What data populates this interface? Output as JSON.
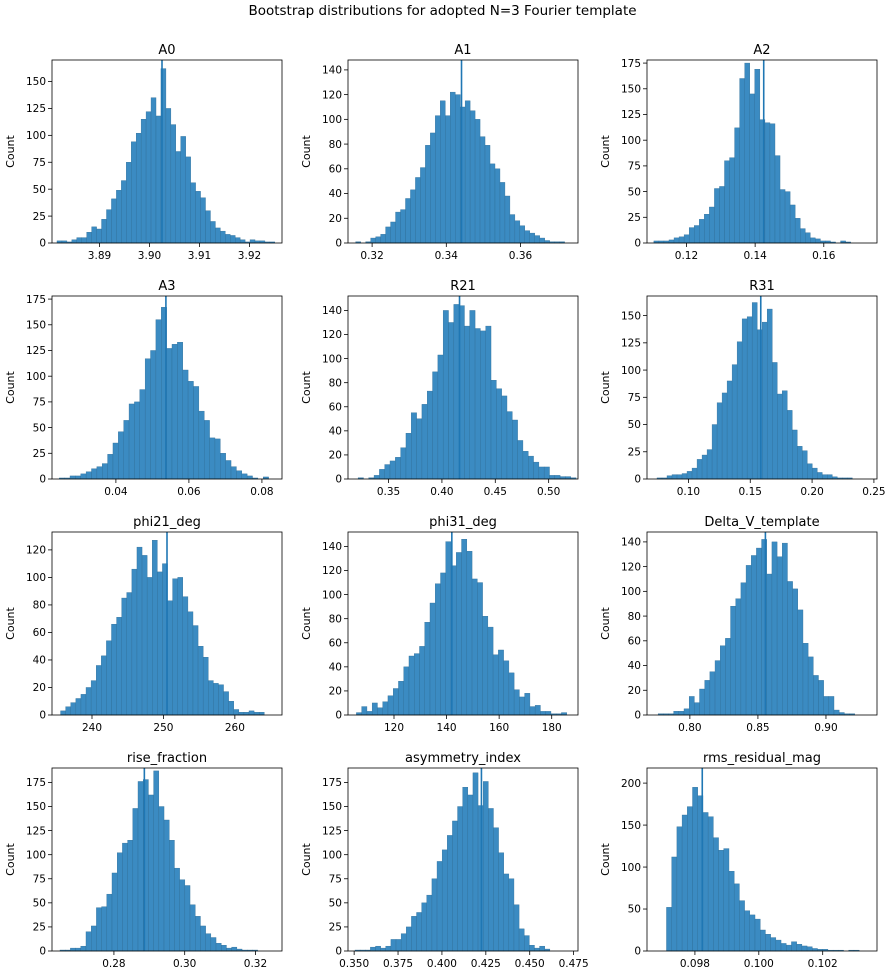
{
  "figure": {
    "suptitle": "Bootstrap distributions for adopted N=3 Fourier template",
    "colors": {
      "bar": "#3b8bc2",
      "bar_edge": "#2f6f9a",
      "marker": "#1f77b4"
    }
  },
  "chart_data": [
    {
      "type": "bar",
      "title": "A0",
      "ylabel": "Count",
      "xlim": [
        3.8805,
        3.9265
      ],
      "ylim": [
        0,
        170
      ],
      "xticks": [
        3.89,
        3.9,
        3.91,
        3.92
      ],
      "xtick_labels": [
        "3.89",
        "3.90",
        "3.91",
        "3.92"
      ],
      "yticks": [
        0,
        25,
        50,
        75,
        100,
        125,
        150
      ],
      "marker_x": 3.9025,
      "bin_start": 3.8815,
      "bin_width": 0.00099,
      "counts": [
        2,
        2,
        1,
        3,
        5,
        5,
        10,
        15,
        13,
        22,
        31,
        41,
        49,
        58,
        75,
        94,
        102,
        115,
        122,
        135,
        118,
        162,
        125,
        110,
        85,
        99,
        80,
        56,
        48,
        42,
        30,
        20,
        14,
        11,
        8,
        7,
        5,
        3,
        1,
        3,
        2,
        2,
        1,
        1
      ]
    },
    {
      "type": "bar",
      "title": "A1",
      "ylabel": "Count",
      "xlim": [
        0.3135,
        0.3755
      ],
      "ylim": [
        0,
        148
      ],
      "xticks": [
        0.32,
        0.34,
        0.36
      ],
      "xtick_labels": [
        "0.32",
        "0.34",
        "0.36"
      ],
      "yticks": [
        0,
        20,
        40,
        60,
        80,
        100,
        120,
        140
      ],
      "marker_x": 0.3441,
      "bin_start": 0.3156,
      "bin_width": 0.00134,
      "counts": [
        1,
        0,
        1,
        4,
        5,
        7,
        13,
        17,
        25,
        27,
        36,
        43,
        53,
        61,
        79,
        89,
        103,
        115,
        103,
        122,
        120,
        110,
        115,
        107,
        100,
        86,
        79,
        64,
        60,
        49,
        38,
        23,
        18,
        14,
        10,
        8,
        6,
        4,
        2,
        1,
        1,
        1
      ]
    },
    {
      "type": "bar",
      "title": "A2",
      "ylabel": "Count",
      "xlim": [
        0.1085,
        0.1755
      ],
      "ylim": [
        0,
        178
      ],
      "xticks": [
        0.12,
        0.14,
        0.16
      ],
      "xtick_labels": [
        "0.12",
        "0.14",
        "0.16"
      ],
      "yticks": [
        0,
        25,
        50,
        75,
        100,
        125,
        150,
        175
      ],
      "marker_x": 0.1425,
      "bin_start": 0.1105,
      "bin_width": 0.00147,
      "counts": [
        2,
        2,
        2,
        3,
        5,
        6,
        8,
        15,
        17,
        23,
        28,
        35,
        53,
        55,
        80,
        83,
        112,
        160,
        175,
        145,
        169,
        120,
        117,
        116,
        85,
        52,
        50,
        37,
        24,
        14,
        10,
        5,
        4,
        2,
        2,
        1,
        0,
        2,
        1
      ]
    },
    {
      "type": "bar",
      "title": "A3",
      "ylabel": "Count",
      "xlim": [
        0.0225,
        0.0855
      ],
      "ylim": [
        0,
        178
      ],
      "xticks": [
        0.04,
        0.06,
        0.08
      ],
      "xtick_labels": [
        "0.04",
        "0.06",
        "0.08"
      ],
      "yticks": [
        0,
        25,
        50,
        75,
        100,
        125,
        150,
        175
      ],
      "marker_x": 0.0537,
      "bin_start": 0.0245,
      "bin_width": 0.00147,
      "counts": [
        1,
        1,
        3,
        3,
        5,
        7,
        10,
        12,
        15,
        24,
        35,
        46,
        57,
        73,
        75,
        87,
        117,
        125,
        155,
        167,
        127,
        131,
        133,
        106,
        95,
        90,
        66,
        57,
        40,
        39,
        25,
        18,
        12,
        8,
        5,
        3,
        1,
        0,
        2
      ]
    },
    {
      "type": "bar",
      "title": "R21",
      "ylabel": "Count",
      "xlim": [
        0.312,
        0.5275
      ],
      "ylim": [
        0,
        152
      ],
      "xticks": [
        0.35,
        0.4,
        0.45,
        0.5
      ],
      "xtick_labels": [
        "0.35",
        "0.40",
        "0.45",
        "0.50"
      ],
      "yticks": [
        0,
        20,
        40,
        60,
        80,
        100,
        120,
        140
      ],
      "marker_x": 0.4165,
      "bin_start": 0.3215,
      "bin_width": 0.00498,
      "counts": [
        1,
        0,
        1,
        3,
        8,
        12,
        15,
        18,
        26,
        38,
        55,
        50,
        62,
        73,
        89,
        103,
        140,
        130,
        145,
        144,
        127,
        140,
        125,
        123,
        127,
        82,
        75,
        69,
        56,
        49,
        32,
        23,
        19,
        14,
        10,
        10,
        3,
        3,
        2,
        2,
        1
      ]
    },
    {
      "type": "bar",
      "title": "R31",
      "ylabel": "Count",
      "xlim": [
        0.0665,
        0.2525
      ],
      "ylim": [
        0,
        168
      ],
      "xticks": [
        0.1,
        0.15,
        0.2,
        0.25
      ],
      "xtick_labels": [
        "0.10",
        "0.15",
        "0.20",
        "0.25"
      ],
      "yticks": [
        0,
        25,
        50,
        75,
        100,
        125,
        150
      ],
      "marker_x": 0.1585,
      "bin_start": 0.0746,
      "bin_width": 0.00405,
      "counts": [
        1,
        1,
        3,
        4,
        4,
        5,
        7,
        10,
        18,
        22,
        27,
        50,
        70,
        79,
        90,
        105,
        126,
        147,
        149,
        162,
        137,
        144,
        156,
        107,
        78,
        81,
        63,
        45,
        30,
        26,
        14,
        10,
        6,
        4,
        4,
        2,
        1,
        1,
        1
      ]
    },
    {
      "type": "bar",
      "title": "phi21_deg",
      "ylabel": "Count",
      "xlim": [
        234.4,
        266.6
      ],
      "ylim": [
        0,
        133
      ],
      "xticks": [
        240,
        250,
        260
      ],
      "xtick_labels": [
        "240",
        "250",
        "260"
      ],
      "yticks": [
        0,
        20,
        40,
        60,
        80,
        100,
        120
      ],
      "marker_x": 250.5,
      "bin_start": 235.6,
      "bin_width": 0.713,
      "counts": [
        3,
        6,
        9,
        12,
        15,
        20,
        25,
        36,
        43,
        54,
        66,
        71,
        85,
        89,
        106,
        122,
        116,
        100,
        127,
        104,
        110,
        83,
        99,
        100,
        86,
        75,
        65,
        50,
        42,
        25,
        23,
        22,
        17,
        10,
        4,
        2,
        2,
        3,
        2,
        2
      ]
    },
    {
      "type": "bar",
      "title": "phi31_deg",
      "ylabel": "Count",
      "xlim": [
        102.5,
        190.0
      ],
      "ylim": [
        0,
        152
      ],
      "xticks": [
        120,
        140,
        160,
        180
      ],
      "xtick_labels": [
        "120",
        "140",
        "160",
        "180"
      ],
      "yticks": [
        0,
        20,
        40,
        60,
        80,
        100,
        120,
        140
      ],
      "marker_x": 142.0,
      "bin_start": 105.7,
      "bin_width": 2.0,
      "counts": [
        2,
        7,
        3,
        10,
        6,
        11,
        16,
        22,
        28,
        40,
        49,
        51,
        57,
        77,
        93,
        109,
        118,
        144,
        124,
        135,
        146,
        136,
        113,
        110,
        82,
        73,
        50,
        54,
        45,
        35,
        21,
        15,
        18,
        7,
        8,
        3,
        3,
        1,
        1,
        2
      ]
    },
    {
      "type": "bar",
      "title": "Delta_V_template",
      "ylabel": "Count",
      "xlim": [
        0.7685,
        0.9375
      ],
      "ylim": [
        0,
        148
      ],
      "xticks": [
        0.8,
        0.85,
        0.9
      ],
      "xtick_labels": [
        "0.80",
        "0.85",
        "0.90"
      ],
      "yticks": [
        0,
        20,
        40,
        60,
        80,
        100,
        120,
        140
      ],
      "marker_x": 0.8555,
      "bin_start": 0.7767,
      "bin_width": 0.0038,
      "counts": [
        1,
        1,
        1,
        3,
        3,
        5,
        15,
        10,
        21,
        28,
        35,
        44,
        56,
        62,
        88,
        94,
        107,
        121,
        129,
        135,
        142,
        114,
        140,
        128,
        139,
        108,
        102,
        85,
        58,
        47,
        32,
        28,
        15,
        15,
        4,
        2,
        1,
        1
      ]
    },
    {
      "type": "bar",
      "title": "rise_fraction",
      "ylabel": "Count",
      "xlim": [
        0.2625,
        0.3275
      ],
      "ylim": [
        0,
        190
      ],
      "xticks": [
        0.28,
        0.3,
        0.32
      ],
      "xtick_labels": [
        "0.28",
        "0.30",
        "0.32"
      ],
      "yticks": [
        0,
        25,
        50,
        75,
        100,
        125,
        150,
        175
      ],
      "marker_x": 0.2886,
      "bin_start": 0.26476,
      "bin_width": 0.00147,
      "counts": [
        1,
        1,
        3,
        3,
        5,
        20,
        26,
        45,
        46,
        59,
        81,
        102,
        112,
        115,
        148,
        176,
        178,
        162,
        187,
        150,
        136,
        115,
        86,
        74,
        68,
        48,
        36,
        26,
        18,
        14,
        8,
        6,
        3,
        4,
        2,
        1,
        1,
        1
      ]
    },
    {
      "type": "bar",
      "title": "asymmetry_index",
      "ylabel": "Count",
      "xlim": [
        0.3465,
        0.4775
      ],
      "ylim": [
        0,
        190
      ],
      "xticks": [
        0.35,
        0.375,
        0.4,
        0.425,
        0.45,
        0.475
      ],
      "xtick_labels": [
        "0.350",
        "0.375",
        "0.400",
        "0.425",
        "0.450",
        "0.475"
      ],
      "yticks": [
        0,
        25,
        50,
        75,
        100,
        125,
        150,
        175
      ],
      "marker_x": 0.4225,
      "bin_start": 0.3505,
      "bin_width": 0.00292,
      "counts": [
        1,
        1,
        1,
        4,
        5,
        3,
        5,
        12,
        12,
        18,
        25,
        36,
        40,
        50,
        58,
        75,
        93,
        105,
        120,
        135,
        150,
        170,
        162,
        185,
        151,
        176,
        148,
        128,
        102,
        80,
        75,
        48,
        23,
        16,
        6,
        3,
        5,
        2
      ]
    },
    {
      "type": "bar",
      "title": "rms_residual_mag",
      "ylabel": "Count",
      "xlim": [
        0.0965,
        0.1037
      ],
      "ylim": [
        0,
        218
      ],
      "xticks": [
        0.098,
        0.1,
        0.102
      ],
      "xtick_labels": [
        "0.098",
        "0.100",
        "0.102"
      ],
      "yticks": [
        0,
        50,
        100,
        150,
        200
      ],
      "marker_x": 0.09823,
      "bin_start": 0.09711,
      "bin_width": 0.000163,
      "counts": [
        52,
        112,
        148,
        162,
        172,
        195,
        185,
        165,
        160,
        135,
        120,
        122,
        95,
        80,
        60,
        48,
        43,
        38,
        25,
        20,
        16,
        13,
        9,
        7,
        11,
        8,
        6,
        5,
        3,
        2,
        2,
        1,
        1,
        1,
        0,
        1,
        1
      ]
    }
  ]
}
